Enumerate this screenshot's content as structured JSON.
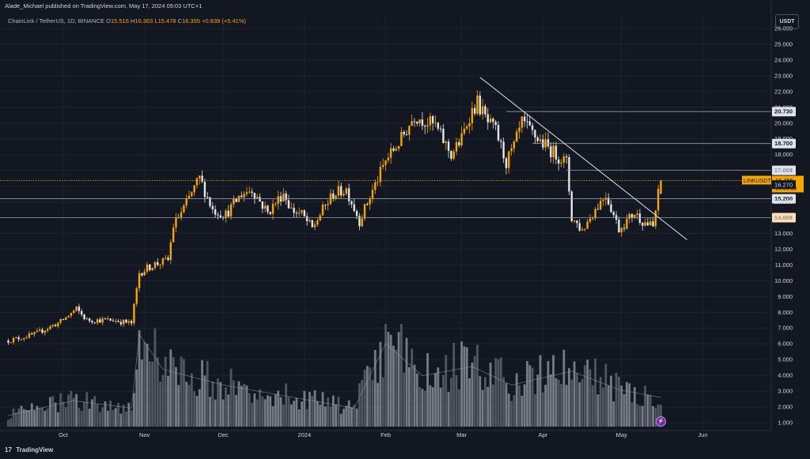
{
  "header": {
    "published": "Alade_Michael published on TradingView.com, May 17, 2024 09:03 UTC+1",
    "symbol": "ChainLink / TetherUS, 1D, BINANCE",
    "ohlc": {
      "o_label": "O",
      "o": "15.516",
      "h_label": "H",
      "h": "16.363",
      "l_label": "L",
      "l": "15.478",
      "c_label": "C",
      "c": "16.355",
      "change": "+0.839 (+5.41%)"
    }
  },
  "currency_button": "USDT",
  "brand": {
    "logo": "17",
    "name": "TradingView"
  },
  "colors": {
    "bg": "#131722",
    "up": "#f7a600",
    "down": "#e6e6e6",
    "grid": "#1e222d",
    "axis_text": "#d1d4dc"
  },
  "chart_data": {
    "type": "candlestick",
    "y_axis": {
      "ticks": [
        "1.000",
        "2.000",
        "3.000",
        "4.000",
        "5.000",
        "6.000",
        "7.000",
        "8.000",
        "9.000",
        "10.000",
        "11.000",
        "12.000",
        "13.000",
        "14.000",
        "15.000",
        "16.000",
        "17.000",
        "18.000",
        "19.000",
        "20.000",
        "21.000",
        "22.000",
        "23.000",
        "24.000",
        "25.000",
        "26.000"
      ],
      "range": [
        1,
        26
      ]
    },
    "x_axis": {
      "labels": [
        {
          "label": "Oct",
          "date": "2023-10-01"
        },
        {
          "label": "Nov",
          "date": "2023-11-01"
        },
        {
          "label": "Dec",
          "date": "2023-12-01"
        },
        {
          "label": "2024",
          "date": "2024-01-01"
        },
        {
          "label": "Feb",
          "date": "2024-02-01"
        },
        {
          "label": "Mar",
          "date": "2024-03-01"
        },
        {
          "label": "Apr",
          "date": "2024-04-01"
        },
        {
          "label": "May",
          "date": "2024-05-01"
        },
        {
          "label": "Jun",
          "date": "2024-06-01"
        }
      ]
    },
    "price_path": [
      [
        "2023-09-10",
        6.2
      ],
      [
        "2023-09-20",
        6.6
      ],
      [
        "2023-09-30",
        7.4
      ],
      [
        "2023-10-06",
        8.2
      ],
      [
        "2023-10-10",
        7.5
      ],
      [
        "2023-10-20",
        7.5
      ],
      [
        "2023-10-27",
        7.3
      ],
      [
        "2023-10-30",
        10.5
      ],
      [
        "2023-11-04",
        11.0
      ],
      [
        "2023-11-10",
        11.3
      ],
      [
        "2023-11-12",
        13.5
      ],
      [
        "2023-11-16",
        14.6
      ],
      [
        "2023-11-22",
        16.5
      ],
      [
        "2023-11-27",
        14.5
      ],
      [
        "2023-12-02",
        14.2
      ],
      [
        "2023-12-08",
        15.5
      ],
      [
        "2023-12-12",
        15.8
      ],
      [
        "2023-12-18",
        14.3
      ],
      [
        "2023-12-24",
        15.6
      ],
      [
        "2023-12-27",
        14.5
      ],
      [
        "2023-12-31",
        14.2
      ],
      [
        "2024-01-04",
        13.3
      ],
      [
        "2024-01-08",
        14.5
      ],
      [
        "2024-01-12",
        15.5
      ],
      [
        "2024-01-17",
        15.8
      ],
      [
        "2024-01-22",
        13.8
      ],
      [
        "2024-02-01",
        17.6
      ],
      [
        "2024-02-07",
        19.0
      ],
      [
        "2024-02-12",
        20.5
      ],
      [
        "2024-02-20",
        19.8
      ],
      [
        "2024-02-26",
        18.0
      ],
      [
        "2024-03-01",
        19.0
      ],
      [
        "2024-03-04",
        20.5
      ],
      [
        "2024-03-07",
        21.3
      ],
      [
        "2024-03-11",
        20.0
      ],
      [
        "2024-03-14",
        19.5
      ],
      [
        "2024-03-18",
        17.5
      ],
      [
        "2024-03-21",
        18.5
      ],
      [
        "2024-03-24",
        20.0
      ],
      [
        "2024-03-30",
        19.0
      ],
      [
        "2024-04-06",
        18.0
      ],
      [
        "2024-04-10",
        17.5
      ],
      [
        "2024-04-12",
        14.0
      ],
      [
        "2024-04-16",
        13.2
      ],
      [
        "2024-04-20",
        14.3
      ],
      [
        "2024-04-25",
        15.5
      ],
      [
        "2024-04-30",
        13.3
      ],
      [
        "2024-05-06",
        14.3
      ],
      [
        "2024-05-09",
        13.8
      ],
      [
        "2024-05-13",
        13.4
      ],
      [
        "2024-05-15",
        15.5
      ],
      [
        "2024-05-16",
        16.355
      ]
    ],
    "trendline": {
      "from": [
        "2024-03-08",
        22.9
      ],
      "to": [
        "2024-05-26",
        12.6
      ]
    },
    "horizontal_levels": [
      {
        "value": 20.73,
        "label": "20.730"
      },
      {
        "value": 18.7,
        "label": "18.700"
      },
      {
        "value": 17.0,
        "label": "17.000"
      },
      {
        "value": 15.2,
        "label": "15.200"
      },
      {
        "value": 14.0,
        "label": "14.000"
      }
    ],
    "current_price": {
      "symbol": "LINKUSDT",
      "value": 16.355,
      "label": "16.355",
      "countdown": "15:56:15"
    },
    "ma_label": {
      "value": 16.27,
      "label": "16.270"
    },
    "volume": {
      "path": [
        [
          "2023-09-10",
          0.12
        ],
        [
          "2023-10-05",
          0.28
        ],
        [
          "2023-10-27",
          0.2
        ],
        [
          "2023-10-30",
          1.0
        ],
        [
          "2023-11-08",
          0.62
        ],
        [
          "2023-12-01",
          0.45
        ],
        [
          "2023-12-31",
          0.3
        ],
        [
          "2024-01-20",
          0.2
        ],
        [
          "2024-02-01",
          0.9
        ],
        [
          "2024-02-15",
          0.55
        ],
        [
          "2024-03-05",
          0.65
        ],
        [
          "2024-03-20",
          0.45
        ],
        [
          "2024-04-12",
          0.6
        ],
        [
          "2024-04-30",
          0.4
        ],
        [
          "2024-05-15",
          0.32
        ]
      ]
    }
  }
}
